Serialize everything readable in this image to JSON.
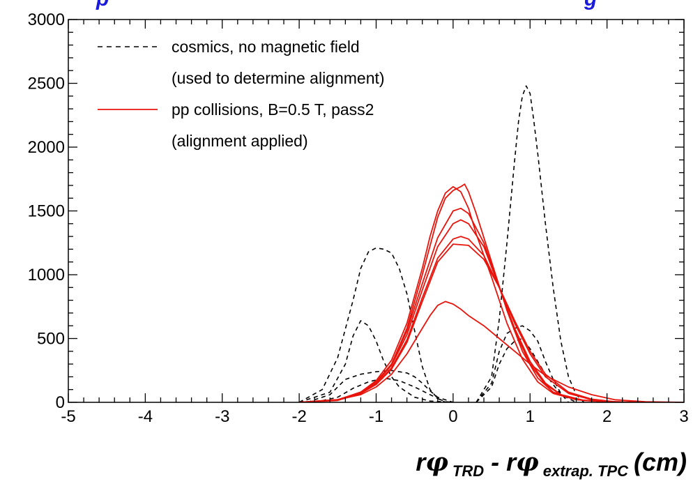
{
  "chart_data": {
    "type": "line",
    "title_fragment_left": "p",
    "title_fragment_right": "g",
    "xlabel": {
      "main1": "r",
      "phi": "φ",
      "sub1": "TRD",
      "dash": "- r",
      "sub2": "extrap. TPC",
      "unit": "(cm)"
    },
    "ylabel": "",
    "xlim": [
      -5,
      3
    ],
    "ylim": [
      0,
      3000
    ],
    "x_ticks": [
      -5,
      -4,
      -3,
      -2,
      -1,
      0,
      1,
      2,
      3
    ],
    "x_tick_labels": [
      "-5",
      "-4",
      "-3",
      "-2",
      "-1",
      "0",
      "1",
      "2",
      "3"
    ],
    "y_ticks": [
      0,
      500,
      1000,
      1500,
      2000,
      2500,
      3000
    ],
    "y_tick_labels": [
      "0",
      "500",
      "1000",
      "1500",
      "2000",
      "2500",
      "3000"
    ],
    "grid": false,
    "legend_position": "top-left",
    "legend": [
      {
        "label": "cosmics, no magnetic field",
        "style": "dashed",
        "color": "#000000"
      },
      {
        "label": "(used to determine alignment)",
        "style": "none",
        "color": "#000000"
      },
      {
        "label": "pp collisions, B=0.5 T, pass2",
        "style": "solid",
        "color": "#e8140c"
      },
      {
        "label": "(alignment applied)",
        "style": "none",
        "color": "#000000"
      }
    ],
    "series": [
      {
        "group": "cosmics",
        "color": "#000000",
        "style": "dashed",
        "x": [
          -2.0,
          -1.7,
          -1.5,
          -1.3,
          -1.2,
          -1.1,
          -1.0,
          -0.9,
          -0.8,
          -0.7,
          -0.6,
          -0.5,
          -0.4,
          -0.3,
          -0.2,
          -0.1,
          0.0
        ],
        "y": [
          0,
          100,
          350,
          800,
          1050,
          1180,
          1210,
          1200,
          1170,
          1050,
          850,
          560,
          280,
          100,
          30,
          5,
          0
        ]
      },
      {
        "group": "cosmics",
        "color": "#000000",
        "style": "dashed",
        "x": [
          -2.0,
          -1.6,
          -1.4,
          -1.3,
          -1.2,
          -1.1,
          -1.0,
          -0.9,
          -0.8,
          -0.7,
          -0.5,
          -0.3,
          0.0
        ],
        "y": [
          0,
          80,
          300,
          520,
          640,
          600,
          480,
          320,
          200,
          120,
          40,
          10,
          0
        ]
      },
      {
        "group": "cosmics",
        "color": "#000000",
        "style": "dashed",
        "x": [
          -1.9,
          -1.6,
          -1.4,
          -1.2,
          -1.0,
          -0.8,
          -0.6,
          -0.5,
          -0.4,
          -0.3,
          -0.2,
          0.0
        ],
        "y": [
          0,
          60,
          180,
          220,
          240,
          250,
          230,
          200,
          150,
          90,
          40,
          0
        ]
      },
      {
        "group": "cosmics",
        "color": "#000000",
        "style": "dashed",
        "x": [
          -1.8,
          -1.5,
          -1.3,
          -1.1,
          -0.9,
          -0.7,
          -0.5,
          -0.3,
          -0.1
        ],
        "y": [
          0,
          40,
          110,
          160,
          190,
          170,
          120,
          60,
          0
        ]
      },
      {
        "group": "cosmics",
        "color": "#000000",
        "style": "dashed",
        "x": [
          0.3,
          0.5,
          0.6,
          0.7,
          0.8,
          0.85,
          0.9,
          0.95,
          1.0,
          1.05,
          1.1,
          1.2,
          1.3,
          1.4,
          1.5,
          1.6,
          1.7
        ],
        "y": [
          0,
          200,
          650,
          1250,
          1900,
          2200,
          2400,
          2480,
          2420,
          2200,
          1950,
          1400,
          900,
          480,
          200,
          60,
          0
        ]
      },
      {
        "group": "cosmics",
        "color": "#000000",
        "style": "dashed",
        "x": [
          0.3,
          0.5,
          0.6,
          0.7,
          0.8,
          0.9,
          1.0,
          1.1,
          1.2,
          1.3,
          1.4,
          1.5
        ],
        "y": [
          0,
          150,
          400,
          540,
          580,
          600,
          560,
          480,
          320,
          180,
          70,
          0
        ]
      },
      {
        "group": "cosmics",
        "color": "#000000",
        "style": "dashed",
        "x": [
          0.3,
          0.5,
          0.6,
          0.7,
          0.8,
          0.9,
          1.0,
          1.2,
          1.4,
          1.6
        ],
        "y": [
          0,
          120,
          300,
          420,
          480,
          500,
          420,
          220,
          60,
          0
        ]
      },
      {
        "group": "pp",
        "color": "#e8140c",
        "style": "solid",
        "x": [
          -2.0,
          -1.5,
          -1.2,
          -1.0,
          -0.8,
          -0.6,
          -0.4,
          -0.3,
          -0.2,
          -0.1,
          0.0,
          0.1,
          0.2,
          0.3,
          0.5,
          0.7,
          0.9,
          1.1,
          1.3,
          1.6,
          2.0,
          2.5,
          3.0
        ],
        "y": [
          0,
          20,
          80,
          170,
          330,
          620,
          1050,
          1300,
          1500,
          1640,
          1690,
          1650,
          1520,
          1320,
          980,
          620,
          340,
          160,
          70,
          20,
          5,
          0,
          0
        ]
      },
      {
        "group": "pp",
        "color": "#e8140c",
        "style": "solid",
        "x": [
          -2.0,
          -1.5,
          -1.2,
          -1.0,
          -0.8,
          -0.6,
          -0.4,
          -0.2,
          -0.1,
          0.0,
          0.1,
          0.15,
          0.2,
          0.3,
          0.5,
          0.7,
          0.9,
          1.1,
          1.3,
          1.6,
          2.0,
          2.5,
          3.0
        ],
        "y": [
          0,
          15,
          70,
          150,
          300,
          580,
          1000,
          1450,
          1600,
          1660,
          1690,
          1710,
          1650,
          1480,
          1100,
          720,
          400,
          190,
          80,
          20,
          5,
          0,
          0
        ]
      },
      {
        "group": "pp",
        "color": "#e8140c",
        "style": "solid",
        "x": [
          -2.0,
          -1.5,
          -1.2,
          -1.0,
          -0.8,
          -0.6,
          -0.4,
          -0.2,
          0.0,
          0.1,
          0.2,
          0.4,
          0.6,
          0.8,
          1.0,
          1.2,
          1.4,
          1.7,
          2.0,
          2.5,
          3.0
        ],
        "y": [
          0,
          20,
          80,
          160,
          300,
          560,
          930,
          1290,
          1500,
          1520,
          1480,
          1250,
          900,
          560,
          300,
          140,
          60,
          15,
          5,
          0,
          0
        ]
      },
      {
        "group": "pp",
        "color": "#e8140c",
        "style": "solid",
        "x": [
          -2.0,
          -1.5,
          -1.2,
          -1.0,
          -0.8,
          -0.6,
          -0.4,
          -0.2,
          0.0,
          0.1,
          0.2,
          0.4,
          0.6,
          0.8,
          1.0,
          1.2,
          1.4,
          1.7,
          2.0,
          2.5,
          3.0
        ],
        "y": [
          0,
          20,
          75,
          150,
          290,
          530,
          880,
          1220,
          1400,
          1430,
          1400,
          1220,
          900,
          580,
          320,
          150,
          60,
          15,
          5,
          0,
          0
        ]
      },
      {
        "group": "pp",
        "color": "#e8140c",
        "style": "solid",
        "x": [
          -2.0,
          -1.5,
          -1.2,
          -1.0,
          -0.8,
          -0.6,
          -0.4,
          -0.2,
          0.0,
          0.1,
          0.2,
          0.4,
          0.6,
          0.8,
          1.0,
          1.2,
          1.5,
          1.8,
          2.1,
          2.5,
          3.0
        ],
        "y": [
          0,
          20,
          70,
          140,
          270,
          490,
          820,
          1130,
          1280,
          1300,
          1280,
          1150,
          900,
          620,
          380,
          200,
          70,
          20,
          5,
          0,
          0
        ]
      },
      {
        "group": "pp",
        "color": "#e8140c",
        "style": "solid",
        "x": [
          -2.0,
          -1.5,
          -1.2,
          -1.0,
          -0.8,
          -0.6,
          -0.4,
          -0.2,
          0.0,
          0.2,
          0.4,
          0.6,
          0.8,
          1.0,
          1.2,
          1.5,
          1.8,
          2.1,
          2.5,
          3.0
        ],
        "y": [
          0,
          20,
          70,
          140,
          260,
          470,
          790,
          1100,
          1240,
          1230,
          1120,
          900,
          640,
          400,
          220,
          80,
          25,
          5,
          0,
          0
        ]
      },
      {
        "group": "pp",
        "color": "#e8140c",
        "style": "solid",
        "x": [
          -2.0,
          -1.5,
          -1.2,
          -1.0,
          -0.8,
          -0.6,
          -0.4,
          -0.3,
          -0.2,
          -0.1,
          0.0,
          0.1,
          0.2,
          0.4,
          0.6,
          0.8,
          1.0,
          1.2,
          1.5,
          1.8,
          2.1,
          2.5,
          3.0
        ],
        "y": [
          0,
          20,
          60,
          120,
          220,
          380,
          580,
          680,
          760,
          790,
          770,
          730,
          680,
          600,
          500,
          400,
          300,
          210,
          120,
          60,
          20,
          5,
          0
        ]
      }
    ]
  }
}
